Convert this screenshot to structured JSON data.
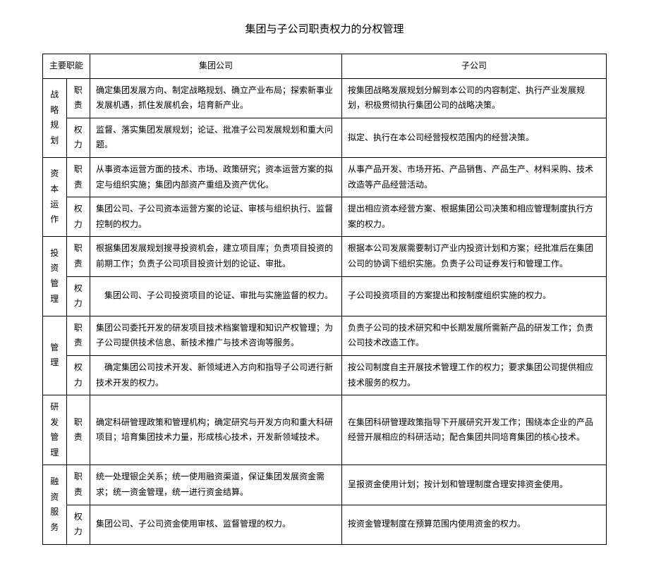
{
  "title": "集团与子公司职责权力的分权管理",
  "headers": {
    "col1": "主要职能",
    "col2": "集团公司",
    "col3": "子公司"
  },
  "rows": [
    {
      "func": "战略规划",
      "type": "职责",
      "group": "确定集团发展方向、制定战略规划、确立产业布局；探索新事业发展机遇，抓住发展机会，培育新产业。",
      "sub": "按集团战略发展规划分解到本公司的内容制定、执行产业发展规划，积极贯彻执行集团公司的战略决策。"
    },
    {
      "func": "",
      "type": "权力",
      "group": "监督、落实集团发展规划；论证、批准子公司发展规划和重大问题。",
      "sub": "拟定、执行在本公司经营授权范围内的经营决策。"
    },
    {
      "func": "资本运作",
      "type": "职责",
      "group": "从事资本运营方面的技术、市场、政策研究；资本运营方案的拟定与组织实施；集团内部资产重组及资产优化。",
      "sub": "从事产品开发、市场开拓、产品销售、产品生产、材料采购、技术改造等产品经营活动。"
    },
    {
      "func": "",
      "type": "权力",
      "group": "集团公司、子公司资本运营方案的论证、审核与组织执行、监督控制的权力。",
      "sub": "提出相应资本经营方案、根据集团公司决策和相应管理制度执行方案的权力。"
    },
    {
      "func": "投资管理",
      "type": "职责",
      "group": "根据集团发展规划搜寻投资机会，建立项目库；负责项目投资的前期工作；负责子公司项目投资计划的论证、审批。",
      "sub": "根据本公司发展需要制订产业内投资计划和方案；经批准后在集团公司的协调下组织实施。负责子公司证券发行和管理工作。"
    },
    {
      "func": "",
      "type": "权力",
      "group": "　集团公司、子公司投资项目的论证、审批与实施监督的权力。",
      "sub": "子公司投资项目的方案提出和按制度组织实施的权力。"
    },
    {
      "func": "管理",
      "type": "职责",
      "group": "集团公司委托开发的研发项目技术档案管理和知识产权管理；为子公司提供技术信息、新技术推广与技术咨询等服务。",
      "sub": "负责子公司的技术研究和中长期发展所需新产品的研发工作；负责公司技术改造工作。"
    },
    {
      "func": "",
      "type": "权力",
      "group": "　确定集团公司技术开发、新领域进入方向和指导子公司进行新技术开发的权力。",
      "sub": "按公司制度自主开展技术管理工作的权力；要求集团公司提供相应技术服务的权力。"
    },
    {
      "func": "研发管理",
      "type": "职责",
      "group": "确定科研管理政策和管理机构；确定研究与开发方向和重大科研项目；培育集团技术力量，形成核心技术，开发新领域技术。",
      "sub": "在集团科研管理政策指导下开展研究开发工作；围绕本企业的产品经营开展相应的科研活动；配合集团共同培育集团的核心技术。"
    },
    {
      "func": "融资服务",
      "type": "职责",
      "group": "统一处理银企关系；统一使用融资渠道，保证集团发展资金需求；统一资金管理，统一进行资金结算。",
      "sub": "呈报资金使用计划；按计划和管理制度合理安排资金使用。"
    },
    {
      "func": "",
      "type": "权力",
      "group": "集团公司、子公司资金使用审核、监督管理的权力。",
      "sub": "按资金管理制度在预算范围内使用资金的权力。"
    }
  ],
  "rowspans": [
    2,
    0,
    2,
    0,
    2,
    0,
    2,
    0,
    1,
    2,
    0
  ]
}
